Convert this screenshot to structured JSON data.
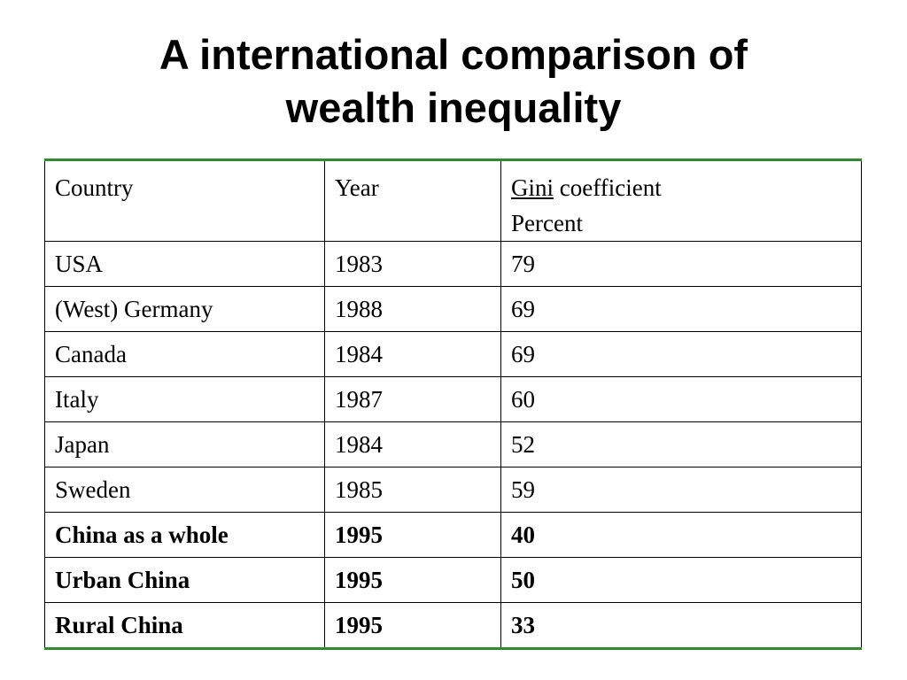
{
  "title": {
    "line1": "A international comparison of",
    "line2": "wealth inequality"
  },
  "table": {
    "headers": {
      "country": "Country",
      "year": "Year",
      "gini_word": "Gini",
      "gini_rest": " coefficient",
      "unit": "Percent"
    },
    "rows": [
      {
        "country": "USA",
        "year": "1983",
        "gini": "79",
        "bold": false
      },
      {
        "country": "(West) Germany",
        "year": "1988",
        "gini": "69",
        "bold": false
      },
      {
        "country": "Canada",
        "year": "1984",
        "gini": "69",
        "bold": false
      },
      {
        "country": "Italy",
        "year": "1987",
        "gini": "60",
        "bold": false
      },
      {
        "country": "Japan",
        "year": "1984",
        "gini": "52",
        "bold": false
      },
      {
        "country": "Sweden",
        "year": "1985",
        "gini": "59",
        "bold": false
      },
      {
        "country": "China as a whole",
        "year": "1995",
        "gini": "40",
        "bold": true
      },
      {
        "country": "Urban China",
        "year": "1995",
        "gini": "50",
        "bold": true
      },
      {
        "country": "Rural China",
        "year": "1995",
        "gini": "33",
        "bold": true
      }
    ]
  },
  "colors": {
    "table_rule": "#2e8b2e"
  }
}
